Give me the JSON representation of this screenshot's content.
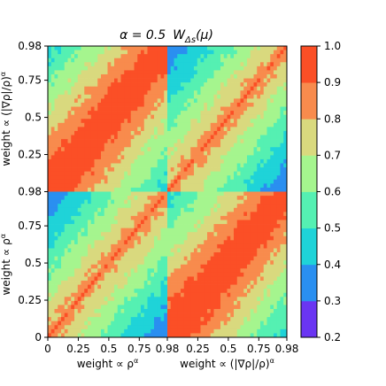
{
  "chart_data": {
    "type": "heatmap",
    "title": "α = 0.5  W_Δs(μ)",
    "title_parts": {
      "alpha_text": "α = 0.5",
      "w_symbol": "W",
      "w_subscript": "Δs",
      "w_argument": "(μ)"
    },
    "layout": "2x2 block matrix",
    "row_blocks": [
      "weight ∝ (|∇ρ|/ρ)^α",
      "weight ∝ ρ^α"
    ],
    "col_blocks": [
      "weight ∝ ρ^α",
      "weight ∝ (|∇ρ|/ρ)^α"
    ],
    "xlabels": [
      {
        "base": "weight ∝ ρ",
        "sup": "α"
      },
      {
        "base": "weight ∝ (|∇ρ|/ρ)",
        "sup": "α"
      }
    ],
    "ylabels": [
      {
        "base": "weight ∝ (|∇ρ|/ρ)",
        "sup": "α"
      },
      {
        "base": "weight ∝ ρ",
        "sup": "α"
      }
    ],
    "x_ticks": [
      "0",
      "0.25",
      "0.5",
      "0.75",
      "0.98",
      "0.25",
      "0.5",
      "0.75",
      "0.98"
    ],
    "y_ticks_top_block": [
      "0.98",
      "0.75",
      "0.5",
      "0.25"
    ],
    "y_ticks_bottom_block": [
      "0.98",
      "0.75",
      "0.5",
      "0.25",
      "0"
    ],
    "block_range": [
      0,
      0.98
    ],
    "colorbar": {
      "colormap": "jet",
      "vmin": 0.2,
      "vmax": 1.0,
      "levels": [
        0.2,
        0.3,
        0.4,
        0.5,
        0.6,
        0.7,
        0.8,
        0.9,
        1.0
      ],
      "tick_labels": [
        "0.2",
        "0.3",
        "0.4",
        "0.5",
        "0.6",
        "0.7",
        "0.8",
        "0.9",
        "1.0"
      ],
      "colors": [
        "#6a35f2",
        "#2a8ff0",
        "#1fd3d8",
        "#55f0b2",
        "#a5f58e",
        "#d9d97e",
        "#f88b4d",
        "#fb4f26"
      ]
    },
    "approx_block_values": {
      "diagonal_blocks": "1.0 on the diagonal, falling to about 0.4 at the far corners",
      "off_diagonal_blocks": "about 0.9 on the matching diagonal, falling to about 0.3 at the corners"
    },
    "grid": false
  }
}
